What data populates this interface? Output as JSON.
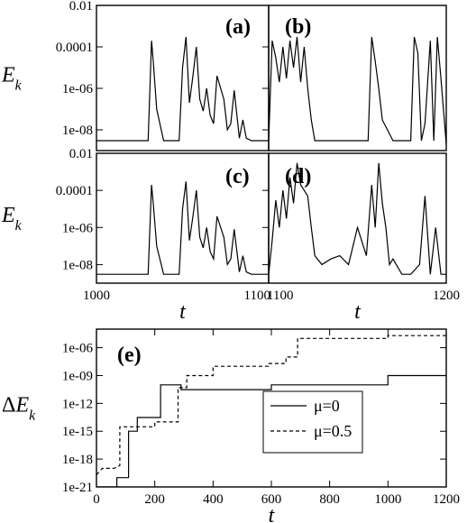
{
  "chart_data": [
    {
      "id": "a",
      "type": "line",
      "panel_label": "(a)",
      "ylabel_main": "E",
      "ylabel_sub": "k",
      "yscale": "log",
      "ylim": [
        1e-09,
        0.01
      ],
      "yticks": [
        "0.01",
        "0.0001",
        "1e-06",
        "1e-08"
      ],
      "xlim": [
        1000,
        1100
      ],
      "xticks": [],
      "xlabel": "",
      "series": [
        {
          "style": "solid",
          "x": [
            1000,
            1030,
            1032,
            1033,
            1035,
            1039,
            1048,
            1050,
            1052,
            1054,
            1056,
            1058,
            1060,
            1062,
            1064,
            1066,
            1068,
            1070,
            1074,
            1076,
            1078,
            1080,
            1083,
            1085,
            1087,
            1090,
            1093,
            1096,
            1100
          ],
          "y": [
            3e-09,
            3e-09,
            0.0002,
            2e-05,
            1e-07,
            3e-09,
            3e-09,
            1e-05,
            0.0003,
            2e-07,
            4e-06,
            0.0001,
            3e-07,
            8e-08,
            1e-06,
            5e-08,
            2e-08,
            4e-06,
            3e-07,
            1e-08,
            2e-08,
            8e-07,
            4e-09,
            3e-08,
            4e-09,
            3e-09,
            3e-09,
            3e-09,
            3e-09
          ]
        }
      ]
    },
    {
      "id": "b",
      "type": "line",
      "panel_label": "(b)",
      "ylabel_main": "",
      "ylabel_sub": "",
      "yscale": "log",
      "ylim": [
        1e-09,
        0.01
      ],
      "yticks": [],
      "xlim": [
        1100,
        1200
      ],
      "xticks": [],
      "xlabel": "",
      "series": [
        {
          "style": "solid",
          "x": [
            1100,
            1102,
            1104,
            1106,
            1108,
            1110,
            1112,
            1114,
            1116,
            1118,
            1120,
            1122,
            1124,
            1126,
            1130,
            1140,
            1150,
            1156,
            1158,
            1160,
            1162,
            1164,
            1170,
            1175,
            1180,
            1182,
            1184,
            1186,
            1188,
            1191,
            1193,
            1195,
            1197,
            1200
          ],
          "y": [
            3e-09,
            0.0002,
            3e-05,
            2e-06,
            0.0001,
            3e-06,
            0.0002,
            1e-05,
            0.0003,
            2e-06,
            0.0001,
            1e-06,
            3e-08,
            3e-09,
            3e-09,
            3e-09,
            3e-09,
            3e-09,
            0.0003,
            2e-05,
            1e-06,
            3e-08,
            3e-09,
            3e-09,
            3e-09,
            0.0003,
            5e-05,
            3e-09,
            2e-08,
            0.0002,
            3e-09,
            0.0003,
            3e-06,
            2e-09
          ]
        }
      ]
    },
    {
      "id": "c",
      "type": "line",
      "panel_label": "(c)",
      "ylabel_main": "E",
      "ylabel_sub": "k",
      "yscale": "log",
      "ylim": [
        1e-09,
        0.01
      ],
      "yticks": [
        "0.01",
        "0.0001",
        "1e-06",
        "1e-08"
      ],
      "xlim": [
        1000,
        1100
      ],
      "xticks": [
        "1000",
        "1100"
      ],
      "xlabel": "t",
      "series": [
        {
          "style": "solid",
          "x": [
            1000,
            1030,
            1032,
            1033,
            1035,
            1039,
            1048,
            1050,
            1052,
            1054,
            1056,
            1058,
            1060,
            1062,
            1064,
            1066,
            1068,
            1070,
            1074,
            1076,
            1078,
            1080,
            1083,
            1085,
            1087,
            1090,
            1093,
            1096,
            1100
          ],
          "y": [
            3e-09,
            3e-09,
            0.0002,
            2e-05,
            1e-07,
            3e-09,
            3e-09,
            1e-05,
            0.0003,
            2e-07,
            4e-06,
            0.0001,
            3e-07,
            8e-08,
            1e-06,
            5e-08,
            2e-08,
            4e-06,
            3e-07,
            1e-08,
            2e-08,
            8e-07,
            4e-09,
            3e-08,
            4e-09,
            3e-09,
            3e-09,
            3e-09,
            3e-09
          ]
        }
      ]
    },
    {
      "id": "d",
      "type": "line",
      "panel_label": "(d)",
      "ylabel_main": "",
      "ylabel_sub": "",
      "yscale": "log",
      "ylim": [
        1e-09,
        0.01
      ],
      "yticks": [],
      "xlim": [
        1100,
        1200
      ],
      "xticks": [
        "1100",
        "1200"
      ],
      "xlabel": "t",
      "series": [
        {
          "style": "solid",
          "x": [
            1100,
            1102,
            1104,
            1106,
            1108,
            1110,
            1112,
            1114,
            1116,
            1118,
            1120,
            1122,
            1124,
            1126,
            1130,
            1135,
            1140,
            1145,
            1150,
            1155,
            1158,
            1160,
            1162,
            1164,
            1166,
            1168,
            1170,
            1175,
            1180,
            1185,
            1188,
            1191,
            1194,
            1197,
            1200
          ],
          "y": [
            3e-09,
            2e-07,
            3e-05,
            1e-06,
            0.0001,
            3e-06,
            0.0005,
            2e-05,
            0.003,
            0.0002,
            0.0001,
            5e-05,
            1e-06,
            3e-08,
            1e-08,
            2e-08,
            3e-08,
            1e-08,
            1e-06,
            3e-08,
            0.0002,
            1e-06,
            0.003,
            2e-05,
            1e-06,
            1e-08,
            2e-08,
            3e-09,
            3e-09,
            1e-08,
            5e-05,
            3e-09,
            1e-06,
            3e-09,
            3e-09
          ]
        }
      ]
    },
    {
      "id": "e",
      "type": "line",
      "panel_label": "(e)",
      "ylabel_main": "ΔE",
      "ylabel_sub": "k",
      "yscale": "log",
      "ylim": [
        1e-21,
        0.0001
      ],
      "yticks": [
        "1e-06",
        "1e-09",
        "1e-12",
        "1e-15",
        "1e-18",
        "1e-21"
      ],
      "xlim": [
        0,
        1200
      ],
      "xticks": [
        "0",
        "200",
        "400",
        "600",
        "800",
        "1000",
        "1200"
      ],
      "xlabel": "t",
      "legend": {
        "position": "right",
        "entries": [
          "μ=0",
          "μ=0.5"
        ]
      },
      "series": [
        {
          "name": "μ=0",
          "style": "solid",
          "x": [
            0,
            70,
            70,
            110,
            110,
            140,
            140,
            220,
            220,
            290,
            290,
            600,
            600,
            1000,
            1000,
            1200
          ],
          "y": [
            1e-21,
            1e-21,
            1e-20,
            1e-20,
            1e-15,
            1e-15,
            3e-14,
            3e-14,
            1e-10,
            1e-10,
            3e-11,
            3e-11,
            1e-10,
            1e-10,
            1e-09,
            1e-09
          ]
        },
        {
          "name": "μ=0.5",
          "style": "dashed",
          "x": [
            0,
            20,
            60,
            80,
            80,
            200,
            200,
            280,
            280,
            310,
            310,
            400,
            400,
            590,
            590,
            650,
            650,
            690,
            690,
            1000,
            1000,
            1200
          ],
          "y": [
            2e-20,
            1e-19,
            1e-19,
            2e-19,
            3e-15,
            3e-15,
            1e-14,
            1e-14,
            5e-11,
            5e-11,
            1e-09,
            1e-09,
            1e-08,
            1e-08,
            2e-08,
            2e-08,
            1e-07,
            1e-07,
            1e-05,
            1e-05,
            2e-05,
            2e-05
          ]
        }
      ]
    }
  ]
}
